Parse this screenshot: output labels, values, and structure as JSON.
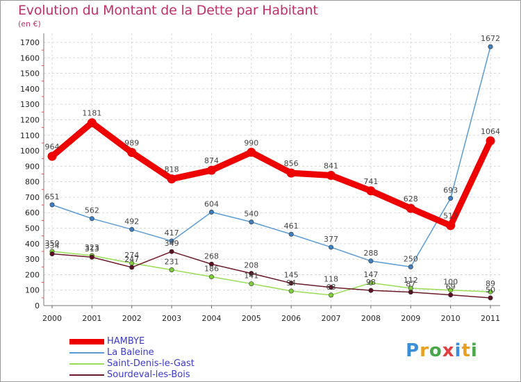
{
  "title": "Evolution du Montant de la Dette par Habitant",
  "unit": "(en €)",
  "logo": {
    "text": "Proxiti",
    "letter_colors": [
      "#3b8fd8",
      "#e8a020",
      "#4aa84a",
      "#e04040",
      "#3b8fd8",
      "#e8a020",
      "#4aa84a"
    ]
  },
  "chart_data": {
    "type": "line",
    "x": [
      "2000",
      "2001",
      "2002",
      "2003",
      "2004",
      "2005",
      "2006",
      "2007",
      "2008",
      "2009",
      "2010",
      "2011"
    ],
    "ylim": [
      0,
      1700
    ],
    "yticks": [
      0,
      100,
      200,
      300,
      400,
      500,
      600,
      700,
      800,
      900,
      1000,
      1100,
      1200,
      1300,
      1400,
      1500,
      1600,
      1700
    ],
    "grid": true,
    "legend_position": "bottom-left",
    "series": [
      {
        "name": "HAMBYE",
        "color": "#ee0000",
        "marker_color": "#ee0000",
        "weight": "thick",
        "values": [
          964,
          1181,
          989,
          818,
          874,
          990,
          856,
          841,
          741,
          628,
          517,
          1064
        ]
      },
      {
        "name": "La Baleine",
        "color": "#5b9bd5",
        "marker_color": "#3f7fc0",
        "weight": "thin",
        "values": [
          651,
          562,
          492,
          417,
          604,
          540,
          461,
          377,
          288,
          250,
          693,
          1672
        ]
      },
      {
        "name": "Saint-Denis-le-Gast",
        "color": "#99dd55",
        "marker_color": "#7fcf3a",
        "weight": "thin",
        "values": [
          350,
          323,
          274,
          231,
          186,
          141,
          94,
          68,
          147,
          112,
          100,
          89
        ]
      },
      {
        "name": "Sourdeval-les-Bois",
        "color": "#6b1a2a",
        "marker_color": "#5a1020",
        "weight": "thin",
        "values": [
          334,
          313,
          247,
          349,
          268,
          208,
          145,
          118,
          98,
          87,
          69,
          50
        ]
      }
    ]
  }
}
